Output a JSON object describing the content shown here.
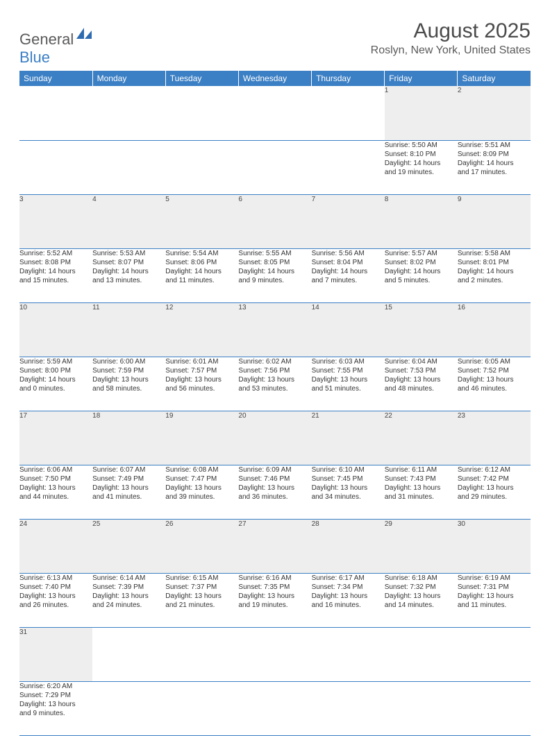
{
  "logo": {
    "text1": "General",
    "text2": "Blue"
  },
  "title": "August 2025",
  "location": "Roslyn, New York, United States",
  "colors": {
    "header_bg": "#3b7fc4",
    "header_text": "#ffffff",
    "daynum_bg": "#eeeeee",
    "border": "#3b7fc4",
    "text": "#333333",
    "logo_gray": "#5a5a5a",
    "logo_blue": "#3b7fc4"
  },
  "typography": {
    "title_fontsize": 30,
    "location_fontsize": 16,
    "dayheader_fontsize": 12,
    "cell_fontsize": 10
  },
  "day_headers": [
    "Sunday",
    "Monday",
    "Tuesday",
    "Wednesday",
    "Thursday",
    "Friday",
    "Saturday"
  ],
  "weeks": [
    [
      null,
      null,
      null,
      null,
      null,
      {
        "n": "1",
        "sr": "Sunrise: 5:50 AM",
        "ss": "Sunset: 8:10 PM",
        "d1": "Daylight: 14 hours",
        "d2": "and 19 minutes."
      },
      {
        "n": "2",
        "sr": "Sunrise: 5:51 AM",
        "ss": "Sunset: 8:09 PM",
        "d1": "Daylight: 14 hours",
        "d2": "and 17 minutes."
      }
    ],
    [
      {
        "n": "3",
        "sr": "Sunrise: 5:52 AM",
        "ss": "Sunset: 8:08 PM",
        "d1": "Daylight: 14 hours",
        "d2": "and 15 minutes."
      },
      {
        "n": "4",
        "sr": "Sunrise: 5:53 AM",
        "ss": "Sunset: 8:07 PM",
        "d1": "Daylight: 14 hours",
        "d2": "and 13 minutes."
      },
      {
        "n": "5",
        "sr": "Sunrise: 5:54 AM",
        "ss": "Sunset: 8:06 PM",
        "d1": "Daylight: 14 hours",
        "d2": "and 11 minutes."
      },
      {
        "n": "6",
        "sr": "Sunrise: 5:55 AM",
        "ss": "Sunset: 8:05 PM",
        "d1": "Daylight: 14 hours",
        "d2": "and 9 minutes."
      },
      {
        "n": "7",
        "sr": "Sunrise: 5:56 AM",
        "ss": "Sunset: 8:04 PM",
        "d1": "Daylight: 14 hours",
        "d2": "and 7 minutes."
      },
      {
        "n": "8",
        "sr": "Sunrise: 5:57 AM",
        "ss": "Sunset: 8:02 PM",
        "d1": "Daylight: 14 hours",
        "d2": "and 5 minutes."
      },
      {
        "n": "9",
        "sr": "Sunrise: 5:58 AM",
        "ss": "Sunset: 8:01 PM",
        "d1": "Daylight: 14 hours",
        "d2": "and 2 minutes."
      }
    ],
    [
      {
        "n": "10",
        "sr": "Sunrise: 5:59 AM",
        "ss": "Sunset: 8:00 PM",
        "d1": "Daylight: 14 hours",
        "d2": "and 0 minutes."
      },
      {
        "n": "11",
        "sr": "Sunrise: 6:00 AM",
        "ss": "Sunset: 7:59 PM",
        "d1": "Daylight: 13 hours",
        "d2": "and 58 minutes."
      },
      {
        "n": "12",
        "sr": "Sunrise: 6:01 AM",
        "ss": "Sunset: 7:57 PM",
        "d1": "Daylight: 13 hours",
        "d2": "and 56 minutes."
      },
      {
        "n": "13",
        "sr": "Sunrise: 6:02 AM",
        "ss": "Sunset: 7:56 PM",
        "d1": "Daylight: 13 hours",
        "d2": "and 53 minutes."
      },
      {
        "n": "14",
        "sr": "Sunrise: 6:03 AM",
        "ss": "Sunset: 7:55 PM",
        "d1": "Daylight: 13 hours",
        "d2": "and 51 minutes."
      },
      {
        "n": "15",
        "sr": "Sunrise: 6:04 AM",
        "ss": "Sunset: 7:53 PM",
        "d1": "Daylight: 13 hours",
        "d2": "and 48 minutes."
      },
      {
        "n": "16",
        "sr": "Sunrise: 6:05 AM",
        "ss": "Sunset: 7:52 PM",
        "d1": "Daylight: 13 hours",
        "d2": "and 46 minutes."
      }
    ],
    [
      {
        "n": "17",
        "sr": "Sunrise: 6:06 AM",
        "ss": "Sunset: 7:50 PM",
        "d1": "Daylight: 13 hours",
        "d2": "and 44 minutes."
      },
      {
        "n": "18",
        "sr": "Sunrise: 6:07 AM",
        "ss": "Sunset: 7:49 PM",
        "d1": "Daylight: 13 hours",
        "d2": "and 41 minutes."
      },
      {
        "n": "19",
        "sr": "Sunrise: 6:08 AM",
        "ss": "Sunset: 7:47 PM",
        "d1": "Daylight: 13 hours",
        "d2": "and 39 minutes."
      },
      {
        "n": "20",
        "sr": "Sunrise: 6:09 AM",
        "ss": "Sunset: 7:46 PM",
        "d1": "Daylight: 13 hours",
        "d2": "and 36 minutes."
      },
      {
        "n": "21",
        "sr": "Sunrise: 6:10 AM",
        "ss": "Sunset: 7:45 PM",
        "d1": "Daylight: 13 hours",
        "d2": "and 34 minutes."
      },
      {
        "n": "22",
        "sr": "Sunrise: 6:11 AM",
        "ss": "Sunset: 7:43 PM",
        "d1": "Daylight: 13 hours",
        "d2": "and 31 minutes."
      },
      {
        "n": "23",
        "sr": "Sunrise: 6:12 AM",
        "ss": "Sunset: 7:42 PM",
        "d1": "Daylight: 13 hours",
        "d2": "and 29 minutes."
      }
    ],
    [
      {
        "n": "24",
        "sr": "Sunrise: 6:13 AM",
        "ss": "Sunset: 7:40 PM",
        "d1": "Daylight: 13 hours",
        "d2": "and 26 minutes."
      },
      {
        "n": "25",
        "sr": "Sunrise: 6:14 AM",
        "ss": "Sunset: 7:39 PM",
        "d1": "Daylight: 13 hours",
        "d2": "and 24 minutes."
      },
      {
        "n": "26",
        "sr": "Sunrise: 6:15 AM",
        "ss": "Sunset: 7:37 PM",
        "d1": "Daylight: 13 hours",
        "d2": "and 21 minutes."
      },
      {
        "n": "27",
        "sr": "Sunrise: 6:16 AM",
        "ss": "Sunset: 7:35 PM",
        "d1": "Daylight: 13 hours",
        "d2": "and 19 minutes."
      },
      {
        "n": "28",
        "sr": "Sunrise: 6:17 AM",
        "ss": "Sunset: 7:34 PM",
        "d1": "Daylight: 13 hours",
        "d2": "and 16 minutes."
      },
      {
        "n": "29",
        "sr": "Sunrise: 6:18 AM",
        "ss": "Sunset: 7:32 PM",
        "d1": "Daylight: 13 hours",
        "d2": "and 14 minutes."
      },
      {
        "n": "30",
        "sr": "Sunrise: 6:19 AM",
        "ss": "Sunset: 7:31 PM",
        "d1": "Daylight: 13 hours",
        "d2": "and 11 minutes."
      }
    ],
    [
      {
        "n": "31",
        "sr": "Sunrise: 6:20 AM",
        "ss": "Sunset: 7:29 PM",
        "d1": "Daylight: 13 hours",
        "d2": "and 9 minutes."
      },
      null,
      null,
      null,
      null,
      null,
      null
    ]
  ]
}
